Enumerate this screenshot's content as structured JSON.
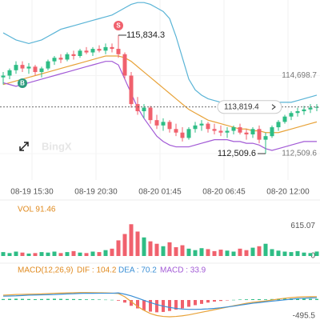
{
  "chart_data": {
    "type": "candlestick",
    "watermark": "BingX",
    "xlim": [
      -0.5,
      49.5
    ],
    "xticks": [
      {
        "value": 4.5,
        "label": "08-19 15:30"
      },
      {
        "value": 14.5,
        "label": "08-19 20:30"
      },
      {
        "value": 24.5,
        "label": "08-20 01:45"
      },
      {
        "value": 34.5,
        "label": "08-20 06:45"
      },
      {
        "value": 44.5,
        "label": "08-20 12:00"
      }
    ],
    "ylim": [
      111769,
      116822
    ],
    "yticks": [
      {
        "value": 114698.7,
        "label": "114,698.7"
      },
      {
        "value": 112509.6,
        "label": "112,509.6"
      }
    ],
    "up_color": "#2ebd85",
    "down_color": "#f0616d",
    "candles": {
      "open": [
        114650,
        114700,
        114850,
        115000,
        114900,
        114950,
        114800,
        114900,
        115100,
        115200,
        115150,
        115300,
        115250,
        115400,
        115350,
        115450,
        115400,
        115500,
        115450,
        115300,
        114700,
        113900,
        113700,
        113800,
        113450,
        113300,
        113400,
        113200,
        113100,
        112950,
        113200,
        113300,
        113350,
        113200,
        113150,
        113100,
        113150,
        113250,
        113100,
        113050,
        113200,
        112900,
        113000,
        113250,
        113400,
        113550,
        113650,
        113700,
        113750,
        113800
      ],
      "high": [
        114800,
        114900,
        115100,
        115100,
        115050,
        115000,
        114950,
        115150,
        115250,
        115300,
        115350,
        115400,
        115450,
        115500,
        115500,
        115550,
        115600,
        115600,
        115834.3,
        115350,
        114800,
        114100,
        113900,
        113850,
        113600,
        113500,
        113450,
        113350,
        113250,
        113250,
        113400,
        113450,
        113400,
        113350,
        113300,
        113250,
        113300,
        113350,
        113200,
        113250,
        113300,
        113100,
        113300,
        113450,
        113600,
        113700,
        113800,
        113850,
        113900,
        113900
      ],
      "low": [
        114450,
        114600,
        114750,
        114800,
        114750,
        114700,
        114650,
        114850,
        115000,
        115050,
        115100,
        115150,
        115200,
        115300,
        115250,
        115350,
        115300,
        115350,
        115200,
        114600,
        113800,
        113600,
        113500,
        113350,
        113200,
        113150,
        113100,
        113000,
        112850,
        112900,
        113100,
        113150,
        113100,
        113050,
        113000,
        112950,
        113050,
        113050,
        112900,
        112950,
        112800,
        112509.6,
        112950,
        113150,
        113350,
        113450,
        113550,
        113600,
        113650,
        113700
      ],
      "close": [
        114700,
        114850,
        115000,
        114900,
        114950,
        114800,
        114900,
        115100,
        115200,
        115150,
        115300,
        115250,
        115400,
        115350,
        115450,
        115400,
        115500,
        115450,
        115300,
        114700,
        113900,
        113700,
        113800,
        113450,
        113300,
        113400,
        113200,
        113100,
        112950,
        113200,
        113300,
        113350,
        113200,
        113150,
        113100,
        113150,
        113250,
        113100,
        113050,
        113200,
        112900,
        113000,
        113250,
        113400,
        113550,
        113650,
        113700,
        113750,
        113800,
        113819.4
      ]
    },
    "series": [
      {
        "name": "upper",
        "color": "#5ab4d6",
        "values": [
          115900,
          115800,
          115700,
          115650,
          115600,
          115650,
          115700,
          115800,
          115900,
          116000,
          116050,
          116100,
          116150,
          116200,
          116250,
          116300,
          116350,
          116400,
          116500,
          116600,
          116700,
          116750,
          116750,
          116700,
          116600,
          116500,
          116300,
          115800,
          115200,
          114600,
          114300,
          114150,
          114050,
          114000,
          113950,
          113950,
          113950,
          113950,
          113950,
          113950,
          113950,
          113950,
          113950,
          113950,
          113950,
          113950,
          114000,
          114050,
          114100,
          114150
        ]
      },
      {
        "name": "middle",
        "color": "#e8a33a",
        "values": [
          114450,
          114500,
          114550,
          114600,
          114650,
          114700,
          114750,
          114800,
          114850,
          114900,
          114950,
          115000,
          115050,
          115100,
          115150,
          115200,
          115250,
          115250,
          115250,
          115200,
          115100,
          114950,
          114800,
          114650,
          114500,
          114350,
          114200,
          114050,
          113900,
          113750,
          113650,
          113550,
          113450,
          113400,
          113350,
          113300,
          113250,
          113200,
          113200,
          113150,
          113150,
          113100,
          113100,
          113100,
          113150,
          113200,
          113250,
          113300,
          113350,
          113400
        ]
      },
      {
        "name": "lower",
        "color": "#a25ad6",
        "values": [
          114500,
          114450,
          114400,
          114450,
          114500,
          114550,
          114600,
          114650,
          114700,
          114750,
          114800,
          114850,
          114900,
          114950,
          115000,
          115050,
          115100,
          115100,
          115000,
          114600,
          114200,
          113800,
          113500,
          113250,
          113000,
          112850,
          112750,
          112700,
          112700,
          112700,
          112750,
          112800,
          112850,
          112900,
          112900,
          112900,
          112850,
          112850,
          112800,
          112800,
          112750,
          112650,
          112600,
          112650,
          112700,
          112750,
          112800,
          112850,
          112850,
          112850
        ]
      }
    ],
    "markers": [
      {
        "label": "S",
        "index": 18,
        "color": "#f0616d"
      },
      {
        "label": "B",
        "index": 3,
        "color": "#2e9b7f"
      }
    ],
    "high_label": {
      "value": 115834.3,
      "label": "115,834.3",
      "index": 18
    },
    "low_label": {
      "value": 112509.6,
      "label": "112,509.6",
      "index": 41
    },
    "last_price": {
      "value": 113819.4,
      "label": "113,819.4"
    },
    "volume": {
      "label": "VOL 91.46",
      "ylim": [
        0,
        900
      ],
      "yticks": [
        {
          "value": 615.07,
          "label": "615.07"
        },
        0
      ],
      "values": [
        80,
        60,
        90,
        70,
        50,
        60,
        80,
        70,
        90,
        60,
        80,
        100,
        70,
        60,
        90,
        80,
        120,
        150,
        320,
        450,
        650,
        500,
        380,
        300,
        250,
        200,
        280,
        180,
        220,
        150,
        120,
        160,
        140,
        100,
        130,
        110,
        90,
        150,
        120,
        170,
        200,
        250,
        140,
        110,
        90,
        80,
        100,
        70,
        60,
        91.46
      ]
    },
    "macd": {
      "label": "MACD(12,26,9)",
      "dif_label": "DIF : 104.2",
      "dea_label": "DEA : 70.2",
      "macd_label": "MACD : 33.9",
      "ylim": [
        -495.5,
        744
      ],
      "yticks": [
        {
          "value": -495.5,
          "label": "-495.5"
        }
      ],
      "dif_color": "#e8a33a",
      "dea_color": "#3a8fd6",
      "macd_color": "#a25ad6",
      "values": [
        30,
        35,
        40,
        35,
        30,
        25,
        30,
        35,
        40,
        35,
        30,
        30,
        25,
        20,
        20,
        15,
        10,
        5,
        -20,
        -80,
        -180,
        -260,
        -320,
        -360,
        -380,
        -370,
        -340,
        -300,
        -260,
        -210,
        -160,
        -120,
        -80,
        -50,
        -30,
        -10,
        5,
        15,
        20,
        25,
        25,
        20,
        30,
        40,
        45,
        45,
        40,
        38,
        35,
        33.9
      ],
      "dif": [
        150,
        160,
        170,
        175,
        180,
        185,
        190,
        200,
        210,
        215,
        220,
        225,
        230,
        230,
        228,
        225,
        220,
        215,
        200,
        100,
        -50,
        -200,
        -320,
        -420,
        -480,
        -510,
        -520,
        -510,
        -490,
        -460,
        -420,
        -380,
        -340,
        -300,
        -260,
        -220,
        -180,
        -140,
        -100,
        -70,
        -50,
        -30,
        0,
        30,
        55,
        75,
        90,
        100,
        103,
        104.2
      ],
      "dea": [
        120,
        125,
        130,
        140,
        150,
        155,
        160,
        165,
        170,
        180,
        190,
        195,
        205,
        210,
        208,
        210,
        210,
        210,
        220,
        180,
        130,
        60,
        -10,
        -80,
        -140,
        -190,
        -230,
        -260,
        -280,
        -290,
        -290,
        -285,
        -275,
        -260,
        -240,
        -215,
        -190,
        -160,
        -130,
        -100,
        -80,
        -55,
        -35,
        -15,
        5,
        25,
        45,
        55,
        65,
        70.2
      ]
    }
  }
}
